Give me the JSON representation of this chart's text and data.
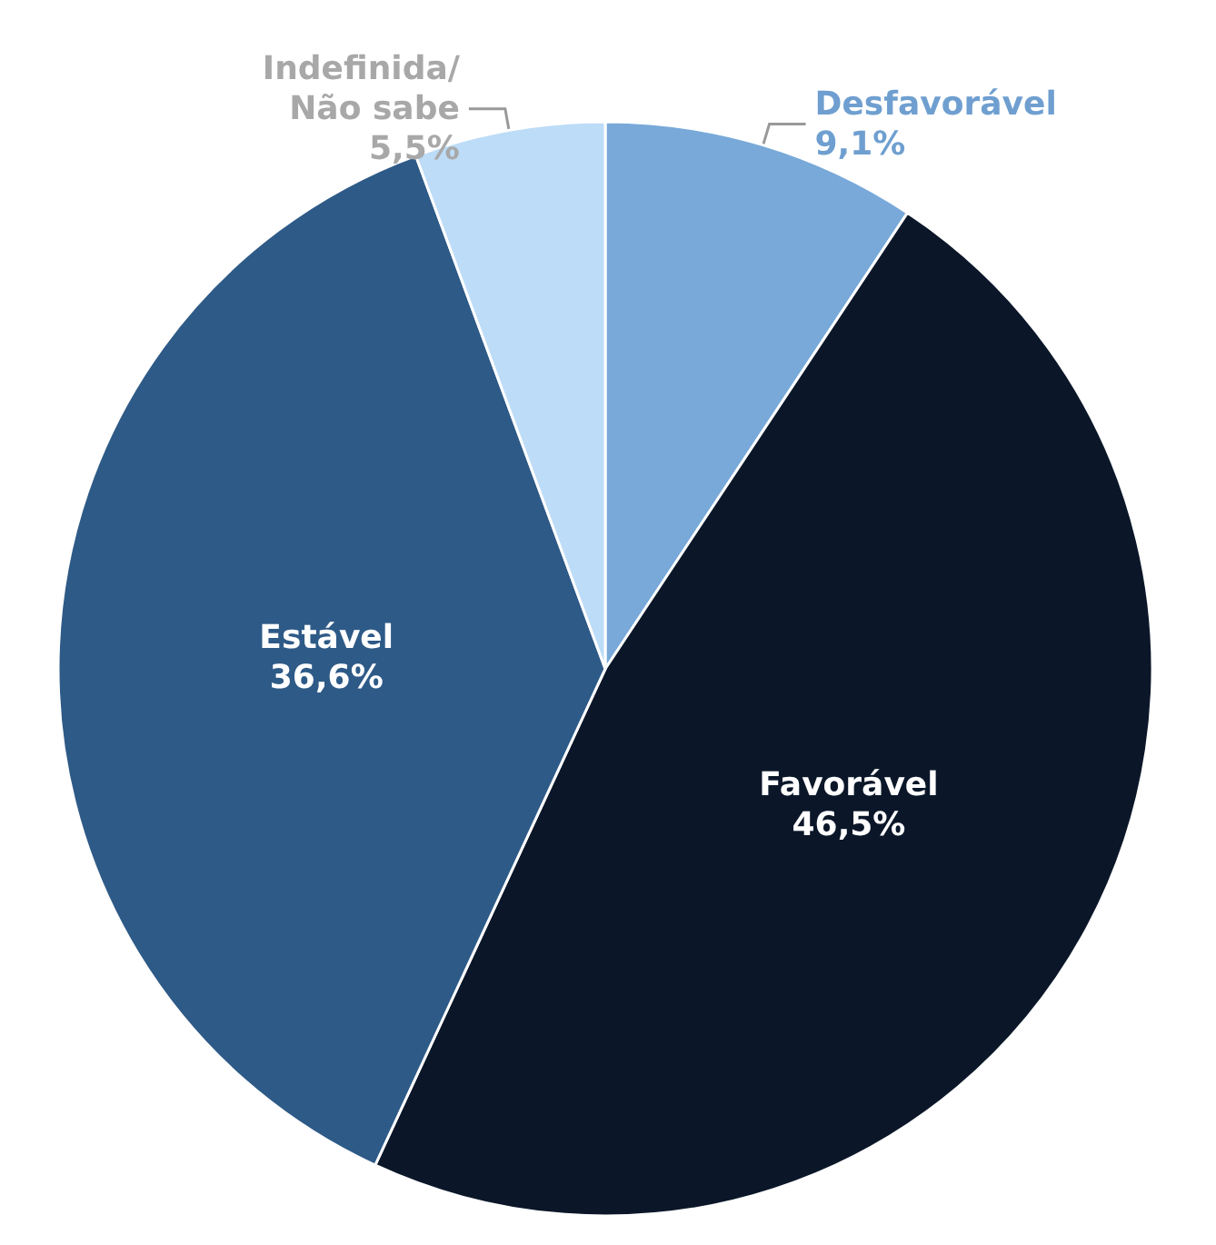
{
  "chart_data": {
    "type": "pie",
    "categories": [
      "Desfavorável",
      "Favorável",
      "Estável",
      "Indefinida/ Não sabe"
    ],
    "values": [
      9.1,
      46.5,
      36.6,
      5.5
    ],
    "value_labels": [
      "9,1%",
      "46,5%",
      "36,6%",
      "5,5%"
    ],
    "colors": [
      "#78a9d9",
      "#0b1729",
      "#2e5a87",
      "#bddcf7"
    ],
    "legend": false
  }
}
